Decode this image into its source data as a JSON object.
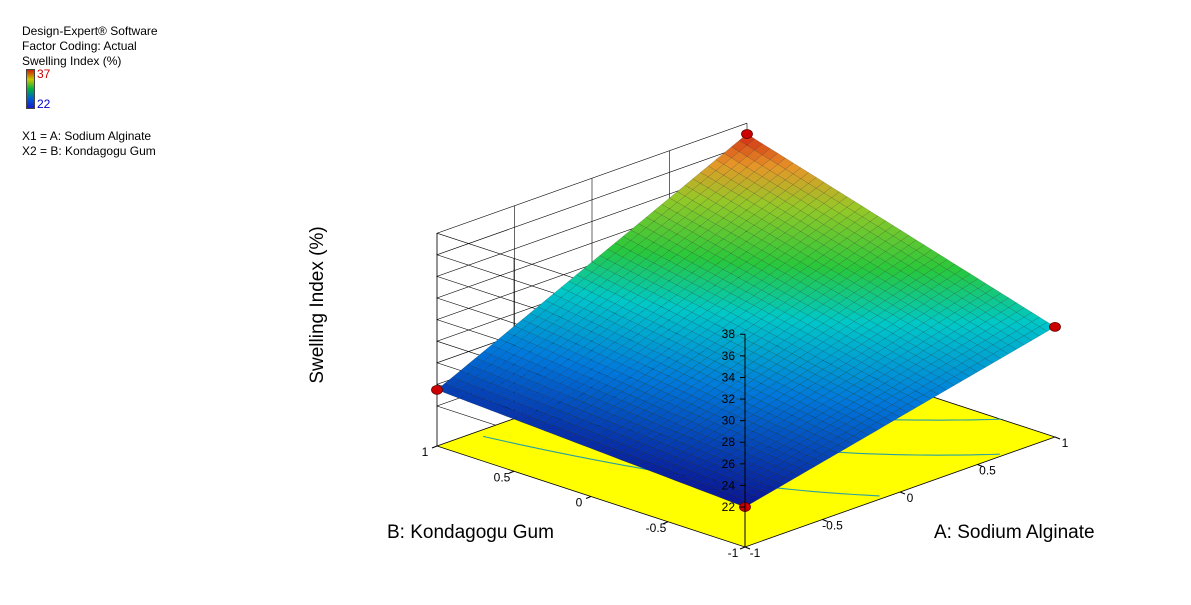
{
  "header": {
    "software": "Design-Expert® Software",
    "coding": "Factor Coding: Actual",
    "response": "Swelling Index (%)"
  },
  "legend": {
    "max": "37",
    "min": "22",
    "max_color": "#cc0000",
    "min_color": "#0000cc"
  },
  "factors": {
    "x1": "X1 = A: Sodium Alginate",
    "x2": "X2 = B: Kondagogu Gum"
  },
  "chart_data": {
    "type": "surface",
    "zlabel": "Swelling Index (%)",
    "xlabel": "A: Sodium Alginate",
    "ylabel": "B: Kondagogu Gum",
    "x_ticks": [
      "-1",
      "-0.5",
      "0",
      "0.5",
      "1"
    ],
    "y_ticks": [
      "-1",
      "-0.5",
      "0",
      "0.5",
      "1"
    ],
    "z_ticks": [
      "22",
      "24",
      "26",
      "28",
      "30",
      "32",
      "34",
      "36",
      "38"
    ],
    "xlim": [
      -1,
      1
    ],
    "ylim": [
      -1,
      1
    ],
    "zlim": [
      22,
      38
    ],
    "grid": true,
    "floor_contour": true,
    "points": [
      {
        "A": -1,
        "B": -1,
        "z": 22
      },
      {
        "A": 1,
        "B": -1,
        "z": 28.5
      },
      {
        "A": -1,
        "B": 1,
        "z": 23.5
      },
      {
        "A": 1,
        "B": 1,
        "z": 37
      }
    ]
  }
}
